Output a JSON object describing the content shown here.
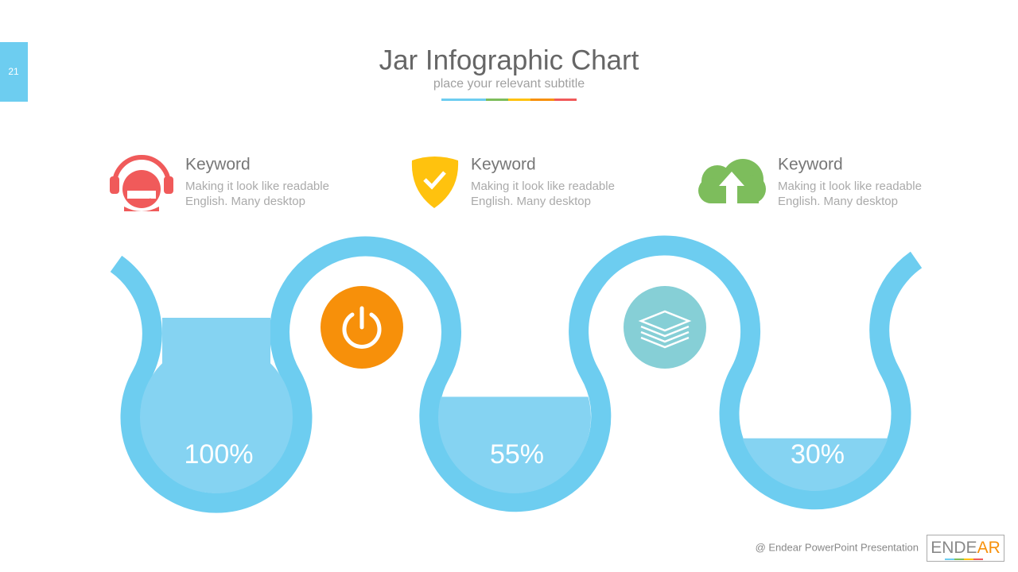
{
  "page_number": "21",
  "header": {
    "title": "Jar Infographic Chart",
    "subtitle": "place your relevant subtitle"
  },
  "features": [
    {
      "heading": "Keyword",
      "lines": [
        "Making it look like readable",
        "English. Many desktop"
      ]
    },
    {
      "heading": "Keyword",
      "lines": [
        "Making it look like readable",
        "English. Many desktop"
      ]
    },
    {
      "heading": "Keyword",
      "lines": [
        "Making it look like readable",
        "English. Many desktop"
      ]
    }
  ],
  "jars": [
    {
      "value": 100,
      "label": "100%"
    },
    {
      "value": 55,
      "label": "55%"
    },
    {
      "value": 30,
      "label": "30%"
    }
  ],
  "footer": {
    "credit": "@ Endear PowerPoint Presentation",
    "logo": [
      "ENDE",
      "AR"
    ]
  }
}
